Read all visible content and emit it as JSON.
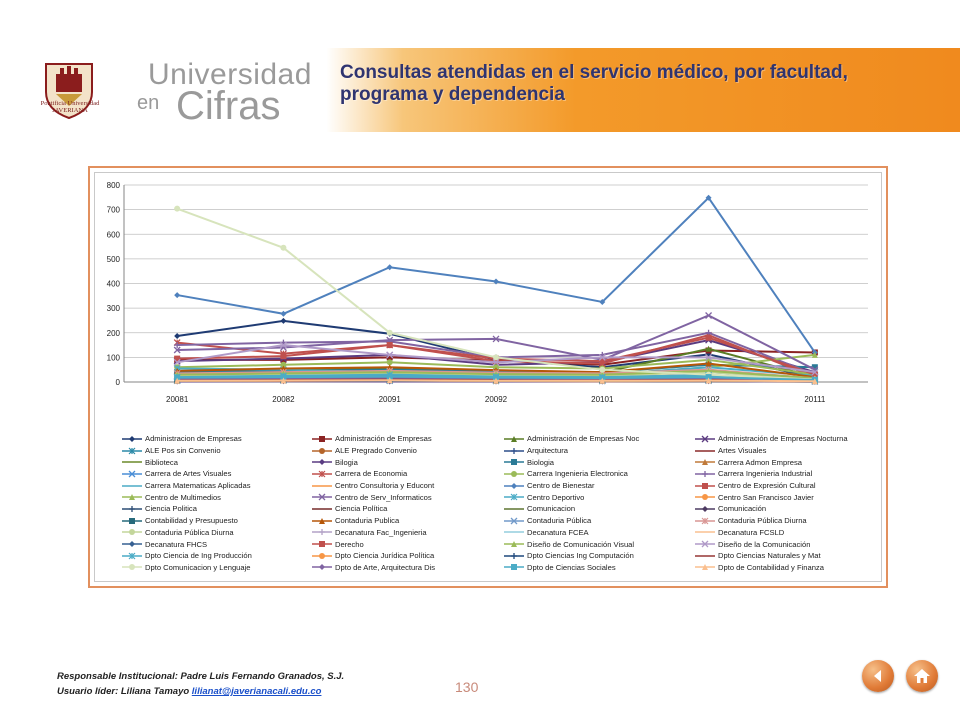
{
  "brand": {
    "crest_caption": "Pontificia Universidad JAVERIANA",
    "line1": "Universidad",
    "line2a": "en",
    "line2b": "Cifras"
  },
  "title": "Consultas atendidas en el servicio médico, por facultad, programa y dependencia",
  "footer": {
    "line1": "Responsable Institucional: Padre Luis Fernando Granados, S.J.",
    "line2_prefix": "Usuario líder: Liliana Tamayo",
    "email": "lilianat@javerianacali.edu.co"
  },
  "page_number": "130",
  "nav": {
    "back_icon": "back-arrow-icon",
    "home_icon": "home-icon"
  },
  "chart_data": {
    "type": "line",
    "categories": [
      "20081",
      "20082",
      "20091",
      "20092",
      "20101",
      "20102",
      "20111"
    ],
    "ylim": [
      0,
      800
    ],
    "yticks": [
      "0",
      "100",
      "200",
      "300",
      "400",
      "500",
      "600",
      "700",
      "800"
    ],
    "legend_position": "bottom",
    "series": [
      {
        "name": "Administracion de Empresas",
        "color": "#1f3b73",
        "marker": "diamond",
        "values": [
          187,
          248,
          196,
          90,
          60,
          112,
          18
        ]
      },
      {
        "name": "Administración de Empresas",
        "color": "#8b2323",
        "marker": "square",
        "values": [
          90,
          90,
          100,
          88,
          70,
          128,
          120
        ]
      },
      {
        "name": "Administración de Empresas Noc",
        "color": "#5a7d25",
        "marker": "triangle",
        "values": [
          40,
          48,
          55,
          40,
          38,
          135,
          20
        ]
      },
      {
        "name": "Administración de Empresas Nocturna",
        "color": "#5b3b80",
        "marker": "x",
        "values": [
          85,
          95,
          110,
          70,
          80,
          170,
          40
        ]
      },
      {
        "name": "ALE Pos sin Convenio",
        "color": "#2b8aa8",
        "marker": "star",
        "values": [
          25,
          30,
          35,
          28,
          30,
          40,
          15
        ]
      },
      {
        "name": "ALE Pregrado Convenio",
        "color": "#b5652a",
        "marker": "circle",
        "values": [
          10,
          15,
          12,
          10,
          8,
          10,
          5
        ]
      },
      {
        "name": "Arquitectura",
        "color": "#2d4e8a",
        "marker": "plus",
        "values": [
          15,
          20,
          30,
          25,
          22,
          20,
          10
        ]
      },
      {
        "name": "Artes Visuales",
        "color": "#8b2a2a",
        "marker": "none",
        "values": [
          5,
          8,
          6,
          5,
          4,
          6,
          3
        ]
      },
      {
        "name": "Biblioteca",
        "color": "#6c8a2a",
        "marker": "none",
        "values": [
          3,
          5,
          4,
          3,
          2,
          3,
          2
        ]
      },
      {
        "name": "Bilogia",
        "color": "#5a3c82",
        "marker": "diamond",
        "values": [
          2,
          3,
          2,
          2,
          2,
          3,
          1
        ]
      },
      {
        "name": "Biologia",
        "color": "#2a7a96",
        "marker": "square",
        "values": [
          40,
          45,
          50,
          42,
          40,
          70,
          60
        ]
      },
      {
        "name": "Carrera Admon Empresa",
        "color": "#c07a3a",
        "marker": "triangle",
        "values": [
          8,
          10,
          9,
          8,
          7,
          9,
          4
        ]
      },
      {
        "name": "Carrera de Artes Visuales",
        "color": "#4a8ed6",
        "marker": "x",
        "values": [
          5,
          6,
          5,
          4,
          4,
          5,
          2
        ]
      },
      {
        "name": "Carrera de Economia",
        "color": "#c0504d",
        "marker": "star",
        "values": [
          160,
          115,
          150,
          85,
          75,
          190,
          20
        ]
      },
      {
        "name": "Carrera Ingenieria Electronica",
        "color": "#9bbb59",
        "marker": "circle",
        "values": [
          60,
          70,
          80,
          60,
          55,
          90,
          30
        ]
      },
      {
        "name": "Carrera Ingenieria Industrial",
        "color": "#8064a2",
        "marker": "plus",
        "values": [
          150,
          160,
          165,
          100,
          110,
          200,
          30
        ]
      },
      {
        "name": "Carrera Matematicas Aplicadas",
        "color": "#4bacc6",
        "marker": "none",
        "values": [
          10,
          12,
          14,
          10,
          9,
          12,
          5
        ]
      },
      {
        "name": "Centro Consultoria y Educont",
        "color": "#f79646",
        "marker": "none",
        "values": [
          4,
          5,
          6,
          4,
          3,
          5,
          2
        ]
      },
      {
        "name": "Centro de Bienestar",
        "color": "#4f81bd",
        "marker": "diamond",
        "values": [
          353,
          277,
          466,
          408,
          325,
          748,
          120
        ]
      },
      {
        "name": "Centro de Expresión Cultural",
        "color": "#c0504d",
        "marker": "square",
        "values": [
          20,
          25,
          30,
          22,
          20,
          28,
          10
        ]
      },
      {
        "name": "Centro de Multimedios",
        "color": "#9bbb59",
        "marker": "triangle",
        "values": [
          30,
          35,
          40,
          32,
          30,
          60,
          110
        ]
      },
      {
        "name": "Centro de Serv_Informaticos",
        "color": "#8064a2",
        "marker": "x",
        "values": [
          130,
          140,
          170,
          175,
          90,
          270,
          50
        ]
      },
      {
        "name": "Centro Deportivo",
        "color": "#4bacc6",
        "marker": "star",
        "values": [
          55,
          50,
          40,
          30,
          30,
          60,
          25
        ]
      },
      {
        "name": "Centro San Francisco Javier",
        "color": "#f79646",
        "marker": "circle",
        "values": [
          15,
          20,
          25,
          18,
          15,
          20,
          8
        ]
      },
      {
        "name": "Ciencia Politica",
        "color": "#2c4d75",
        "marker": "plus",
        "values": [
          8,
          10,
          12,
          9,
          8,
          10,
          4
        ]
      },
      {
        "name": "Ciencia Política",
        "color": "#772c2a",
        "marker": "none",
        "values": [
          6,
          8,
          9,
          7,
          6,
          8,
          3
        ]
      },
      {
        "name": "Comunicacion",
        "color": "#5f7530",
        "marker": "none",
        "values": [
          12,
          15,
          18,
          14,
          12,
          16,
          6
        ]
      },
      {
        "name": "Comunicación",
        "color": "#4d3b62",
        "marker": "diamond",
        "values": [
          20,
          25,
          28,
          22,
          20,
          25,
          10
        ]
      },
      {
        "name": "Contabilidad y Presupuesto",
        "color": "#276a7c",
        "marker": "square",
        "values": [
          5,
          6,
          7,
          5,
          5,
          6,
          3
        ]
      },
      {
        "name": "Contaduria Publica",
        "color": "#b65708",
        "marker": "triangle",
        "values": [
          45,
          55,
          60,
          48,
          40,
          75,
          20
        ]
      },
      {
        "name": "Contaduria Pública",
        "color": "#729aca",
        "marker": "x",
        "values": [
          20,
          25,
          30,
          22,
          20,
          28,
          10
        ]
      },
      {
        "name": "Contaduria Pública Diurna",
        "color": "#d99694",
        "marker": "star",
        "values": [
          35,
          40,
          45,
          38,
          35,
          50,
          15
        ]
      },
      {
        "name": "Contaduria Pública Diurna",
        "color": "#c3d69b",
        "marker": "circle",
        "values": [
          25,
          30,
          35,
          28,
          25,
          40,
          12
        ]
      },
      {
        "name": "Decanatura Fac_Ingenieria",
        "color": "#b3a2c7",
        "marker": "plus",
        "values": [
          15,
          18,
          20,
          16,
          15,
          20,
          8
        ]
      },
      {
        "name": "Decanatura FCEA",
        "color": "#93cddd",
        "marker": "none",
        "values": [
          10,
          12,
          14,
          11,
          10,
          14,
          5
        ]
      },
      {
        "name": "Decanatura FCSLD",
        "color": "#fac090",
        "marker": "none",
        "values": [
          8,
          10,
          12,
          9,
          8,
          11,
          4
        ]
      },
      {
        "name": "Decanatura FHCS",
        "color": "#376092",
        "marker": "diamond",
        "values": [
          6,
          8,
          9,
          7,
          6,
          8,
          3
        ]
      },
      {
        "name": "Derecho",
        "color": "#c0504d",
        "marker": "square",
        "values": [
          95,
          105,
          150,
          95,
          85,
          180,
          30
        ]
      },
      {
        "name": "Diseño de Comunicación Visual",
        "color": "#9bbb59",
        "marker": "triangle",
        "values": [
          30,
          35,
          40,
          32,
          30,
          45,
          15
        ]
      },
      {
        "name": "Diseño de la Comunicación",
        "color": "#b09ac8",
        "marker": "x",
        "values": [
          80,
          150,
          110,
          80,
          100,
          100,
          40
        ]
      },
      {
        "name": "Dpto Ciencia de Ing Producción",
        "color": "#4bacc6",
        "marker": "star",
        "values": [
          20,
          25,
          30,
          22,
          20,
          28,
          10
        ]
      },
      {
        "name": "Dpto Ciencia Jurídica Política",
        "color": "#f79646",
        "marker": "circle",
        "values": [
          12,
          15,
          18,
          14,
          12,
          16,
          6
        ]
      },
      {
        "name": "Dpto Ciencias Ing Computación",
        "color": "#1f497d",
        "marker": "plus",
        "values": [
          10,
          12,
          14,
          11,
          10,
          13,
          5
        ]
      },
      {
        "name": "Dpto Ciencias Naturales y Mat",
        "color": "#953735",
        "marker": "none",
        "values": [
          8,
          10,
          12,
          9,
          8,
          11,
          4
        ]
      },
      {
        "name": "Dpto Comunicacion y Lenguaje",
        "color": "#d7e4bc",
        "marker": "circle",
        "values": [
          704,
          545,
          200,
          100,
          50,
          30,
          10
        ]
      },
      {
        "name": "Dpto de Arte, Arquitectura Dis",
        "color": "#8064a2",
        "marker": "diamond",
        "values": [
          14,
          16,
          18,
          15,
          14,
          17,
          7
        ]
      },
      {
        "name": "Dpto de Ciencias Sociales",
        "color": "#4bacc6",
        "marker": "square",
        "values": [
          18,
          20,
          22,
          18,
          16,
          20,
          8
        ]
      },
      {
        "name": "Dpto de Contabilidad y Finanza",
        "color": "#fabf8f",
        "marker": "triangle",
        "values": [
          5,
          6,
          7,
          5,
          5,
          6,
          3
        ]
      }
    ]
  }
}
